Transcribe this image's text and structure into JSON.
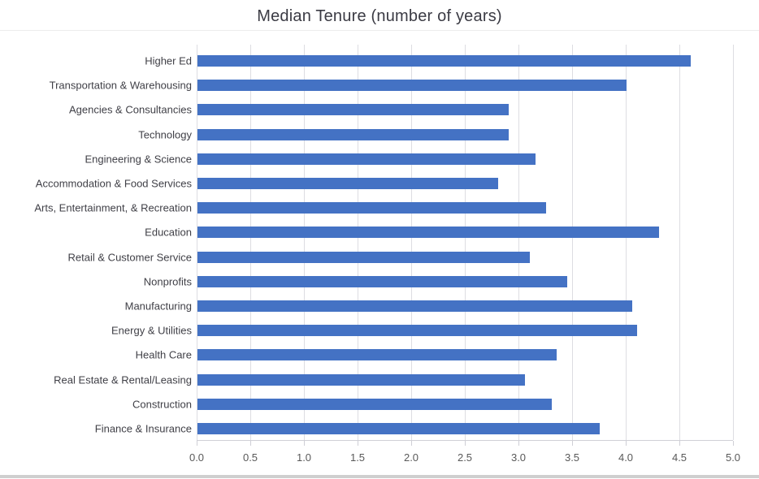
{
  "chart_data": {
    "type": "bar",
    "orientation": "horizontal",
    "title": "Median Tenure (number of years)",
    "categories": [
      "Higher Ed",
      "Transportation & Warehousing",
      "Agencies & Consultancies",
      "Technology",
      "Engineering & Science",
      "Accommodation & Food Services",
      "Arts, Entertainment, & Recreation",
      "Education",
      "Retail & Customer Service",
      "Nonprofits",
      "Manufacturing",
      "Energy & Utilities",
      "Health Care",
      "Real Estate & Rental/Leasing",
      "Construction",
      "Finance & Insurance"
    ],
    "values": [
      4.6,
      4.0,
      2.9,
      2.9,
      3.15,
      2.8,
      3.25,
      4.3,
      3.1,
      3.45,
      4.05,
      4.1,
      3.35,
      3.05,
      3.3,
      3.75
    ],
    "xlim": [
      0,
      5
    ],
    "xtick_labels": [
      "0.0",
      "0.5",
      "1.0",
      "1.5",
      "2.0",
      "2.5",
      "3.0",
      "3.5",
      "4.0",
      "4.5",
      "5.0"
    ],
    "xlabel": "",
    "ylabel": "",
    "legend": "none",
    "grid": "vertical",
    "bar_color": "#4472C4",
    "gridline_color": "#dddde2",
    "axis_line_color": "#d0d0d6",
    "title_color": "#3b3b44",
    "category_label_color": "#404047",
    "tick_label_color": "#595959",
    "background_color": "#ffffff"
  }
}
